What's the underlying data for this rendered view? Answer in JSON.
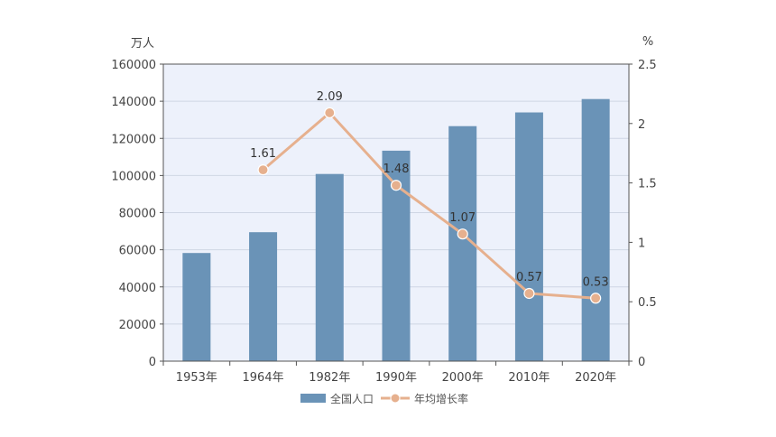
{
  "chart_data": {
    "type": "bar",
    "categories": [
      "1953年",
      "1964年",
      "1982年",
      "1990年",
      "2000年",
      "2010年",
      "2020年"
    ],
    "series": [
      {
        "name": "全国人口",
        "type": "bar",
        "axis": "left",
        "color": "#6a93b7",
        "values": [
          58260,
          69458,
          100818,
          113368,
          126583,
          133972,
          141178
        ]
      },
      {
        "name": "年均增长率",
        "type": "line",
        "axis": "right",
        "color": "#e6b08e",
        "values": [
          null,
          1.61,
          2.09,
          1.48,
          1.07,
          0.57,
          0.53
        ],
        "labels": [
          "",
          "1.61",
          "2.09",
          "1.48",
          "1.07",
          "0.57",
          "0.53"
        ]
      }
    ],
    "y_left": {
      "unit": "万人",
      "range": [
        0,
        160000
      ],
      "ticks": [
        "0",
        "20000",
        "40000",
        "60000",
        "80000",
        "100000",
        "120000",
        "140000",
        "160000"
      ]
    },
    "y_right": {
      "unit": "%",
      "range": [
        0,
        2.5
      ],
      "ticks": [
        "0",
        "0.5",
        "1",
        "1.5",
        "2",
        "2.5"
      ]
    },
    "grid": true,
    "legend_position": "bottom-center",
    "plot_background": "#edf1fb"
  }
}
